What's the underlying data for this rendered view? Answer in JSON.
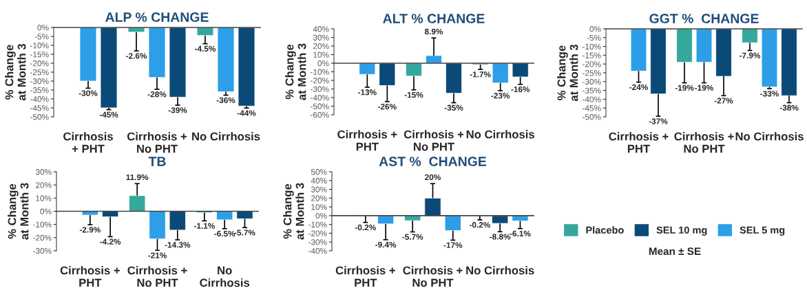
{
  "chart_data": [
    {
      "type": "bar",
      "title": "ALP % CHANGE",
      "ylabel": "% Change\nat Month 3",
      "categories": [
        "Cirrhosis\n+ PHT",
        "Cirrhosis +\nNo PHT",
        "No Cirrhosis"
      ],
      "ylim": [
        -50,
        0
      ],
      "yticks": [
        {
          "value": 0,
          "label": "0%"
        },
        {
          "value": -5,
          "label": "-5%"
        },
        {
          "value": -10,
          "label": "-10%"
        },
        {
          "value": -15,
          "label": "-15%"
        },
        {
          "value": -20,
          "label": "-20%"
        },
        {
          "value": -25,
          "label": "-25%"
        },
        {
          "value": -30,
          "label": "-30%"
        },
        {
          "value": -35,
          "label": "-35%"
        },
        {
          "value": -40,
          "label": "-40%"
        },
        {
          "value": -45,
          "label": "-45%"
        },
        {
          "value": -50,
          "label": "-50%"
        }
      ],
      "series": [
        {
          "color": "#35a89c",
          "values": [
            null,
            -2.6,
            -4.5
          ],
          "errors": [
            null,
            [
              -13.1,
              -2.6
            ],
            [
              -9.1,
              -4.5
            ]
          ],
          "value_labels": [
            null,
            "-2.6%",
            "-4.5%"
          ]
        },
        {
          "color": "#2d9ee8",
          "values": [
            -30,
            -28,
            -36
          ],
          "errors": [
            [
              -34,
              -30
            ],
            [
              -34.6,
              -28
            ],
            [
              -37.9,
              -36
            ]
          ],
          "value_labels": [
            "-30%",
            "-28%",
            "-36%"
          ]
        },
        {
          "color": "#0b4a78",
          "values": [
            -45,
            -39,
            -44
          ],
          "errors": [
            [
              -46,
              -45
            ],
            [
              -43.5,
              -39
            ],
            [
              -45.1,
              -44
            ]
          ],
          "value_labels": [
            "-45%",
            "-39%",
            "-44%"
          ]
        }
      ]
    },
    {
      "type": "bar",
      "title": "ALT % CHANGE",
      "ylabel": "% Change\nat Month 3",
      "categories": [
        "Cirrhosis +\nPHT",
        "Cirrhosis +\nNo PHT",
        "No Cirrhosis"
      ],
      "ylim": [
        -60,
        40
      ],
      "yticks": [
        {
          "value": 40,
          "label": "40%"
        },
        {
          "value": 30,
          "label": "30%"
        },
        {
          "value": 20,
          "label": "20%"
        },
        {
          "value": 10,
          "label": "10%"
        },
        {
          "value": 0,
          "label": "0%"
        },
        {
          "value": -10,
          "label": "-10%"
        },
        {
          "value": -20,
          "label": "-20%"
        },
        {
          "value": -30,
          "label": "-30%"
        },
        {
          "value": -40,
          "label": "-40%"
        },
        {
          "value": -50,
          "label": "-50%"
        },
        {
          "value": -60,
          "label": "-60%"
        }
      ],
      "series": [
        {
          "color": "#35a89c",
          "values": [
            null,
            -15,
            -1.7
          ],
          "errors": [
            null,
            [
              -31,
              -15
            ],
            [
              -7.2,
              -1.7
            ]
          ],
          "value_labels": [
            null,
            "-15%",
            "-1.7%"
          ]
        },
        {
          "color": "#2d9ee8",
          "values": [
            -13,
            8.9,
            -23
          ],
          "errors": [
            [
              -28,
              -13
            ],
            [
              8.9,
              29.4
            ],
            [
              -32,
              -23
            ]
          ],
          "value_labels": [
            "-13%",
            "8.9%",
            "-23%"
          ]
        },
        {
          "color": "#0b4a78",
          "values": [
            -26,
            -35,
            -16
          ],
          "errors": [
            [
              -44.7,
              -26
            ],
            [
              -46,
              -35
            ],
            [
              -24.6,
              -16
            ]
          ],
          "value_labels": [
            "-26%",
            "-35%",
            "-16%"
          ]
        }
      ]
    },
    {
      "type": "bar",
      "title": "GGT %  CHANGE",
      "ylabel": "% Change\nat Month 3",
      "categories": [
        "Cirrhosis +\nPHT",
        "Cirrhosis +\nNo PHT",
        "No Cirrhosis"
      ],
      "ylim": [
        -50,
        0
      ],
      "yticks": [
        {
          "value": 0,
          "label": "0%"
        },
        {
          "value": -5,
          "label": "-5%"
        },
        {
          "value": -10,
          "label": "-10%"
        },
        {
          "value": -15,
          "label": "-15%"
        },
        {
          "value": -20,
          "label": "-20%"
        },
        {
          "value": -25,
          "label": "-25%"
        },
        {
          "value": -30,
          "label": "-30%"
        },
        {
          "value": -35,
          "label": "-35%"
        },
        {
          "value": -40,
          "label": "-40%"
        },
        {
          "value": -45,
          "label": "-45%"
        },
        {
          "value": -50,
          "label": "-50%"
        }
      ],
      "series": [
        {
          "color": "#35a89c",
          "values": [
            null,
            -19,
            -7.9
          ],
          "errors": [
            null,
            [
              -30.7,
              -19
            ],
            [
              -12.3,
              -7.9
            ]
          ],
          "value_labels": [
            null,
            "-19%",
            "-7.9%"
          ]
        },
        {
          "color": "#2d9ee8",
          "values": [
            -24,
            -19,
            -33
          ],
          "errors": [
            [
              -30.3,
              -24
            ],
            [
              -30.7,
              -19
            ],
            [
              -34,
              -33
            ]
          ],
          "value_labels": [
            "-24%",
            "-19%",
            "-33%"
          ]
        },
        {
          "color": "#0b4a78",
          "values": [
            -37,
            -27,
            -38
          ],
          "errors": [
            [
              -49.7,
              -37
            ],
            [
              -38,
              -27
            ],
            [
              -42,
              -38
            ]
          ],
          "value_labels": [
            "-37%",
            "-27%",
            "-38%"
          ]
        }
      ]
    },
    {
      "type": "bar",
      "title": "TB",
      "ylabel": "% Change\nat Month 3",
      "categories": [
        "Cirrhosis +\nPHT",
        "Cirrhosis +\nNo PHT",
        "No\nCirrhosis"
      ],
      "ylim": [
        -30,
        30
      ],
      "yticks": [
        {
          "value": 30,
          "label": "30%"
        },
        {
          "value": 20,
          "label": "20%"
        },
        {
          "value": 10,
          "label": "10%"
        },
        {
          "value": 0,
          "label": "0%"
        },
        {
          "value": -10,
          "label": "-10%"
        },
        {
          "value": -20,
          "label": "-20%"
        },
        {
          "value": -30,
          "label": "-30%"
        }
      ],
      "series": [
        {
          "color": "#35a89c",
          "values": [
            null,
            11.9,
            -1.1
          ],
          "errors": [
            null,
            [
              11.9,
              21
            ],
            [
              -7.3,
              -1.1
            ]
          ],
          "value_labels": [
            null,
            "11.9%",
            "-1.1%"
          ]
        },
        {
          "color": "#2d9ee8",
          "values": [
            -2.9,
            -21,
            -6.5
          ],
          "errors": [
            [
              -10.2,
              -2.9
            ],
            [
              -29.7,
              -21
            ],
            [
              -13.2,
              -6.5
            ]
          ],
          "value_labels": [
            "-2.9%",
            "-21%",
            "-6.5%"
          ]
        },
        {
          "color": "#0b4a78",
          "values": [
            -4.2,
            -14.3,
            -5.7
          ],
          "errors": [
            [
              -19.3,
              -4.2
            ],
            [
              -21.7,
              -14.3
            ],
            [
              -12.4,
              -5.7
            ]
          ],
          "value_labels": [
            "-4.2%",
            "-14.3%",
            "-5.7%"
          ]
        }
      ]
    },
    {
      "type": "bar",
      "title": "AST %  CHANGE",
      "ylabel": "% Change\nat Month 3",
      "categories": [
        "Cirrhosis +\nPHT",
        "Cirrhosis +\nNo PHT",
        "No Cirrhosis"
      ],
      "ylim": [
        -40,
        50
      ],
      "yticks": [
        {
          "value": 50,
          "label": "50%"
        },
        {
          "value": 40,
          "label": "40%"
        },
        {
          "value": 30,
          "label": "30%"
        },
        {
          "value": 20,
          "label": "20%"
        },
        {
          "value": 10,
          "label": "10%"
        },
        {
          "value": 0,
          "label": "0%"
        },
        {
          "value": -10,
          "label": "-10%"
        },
        {
          "value": -20,
          "label": "-20%"
        },
        {
          "value": -30,
          "label": "-30%"
        },
        {
          "value": -40,
          "label": "-40%"
        }
      ],
      "legend": "right",
      "annotations": [
        "Mean ± SE"
      ],
      "series": [
        {
          "name": "Placebo",
          "color": "#35a89c",
          "values": [
            null,
            -5.7,
            -0.2
          ],
          "errors": [
            null,
            [
              -18.5,
              -5.7
            ],
            [
              -4.8,
              -0.2
            ]
          ],
          "value_labels": [
            null,
            "-5.7%",
            "-0.2%"
          ]
        },
        {
          "name": "SEL 10 mg",
          "color": "#0b4a78",
          "values": [
            -0.2,
            20,
            -8.8
          ],
          "errors": [
            [
              -7.7,
              -0.2
            ],
            [
              20,
              36.5
            ],
            [
              -18.3,
              -8.8
            ]
          ],
          "value_labels": [
            "-0.2%",
            "20%",
            "-8.8%"
          ]
        },
        {
          "name": "SEL 5 mg",
          "color": "#2d9ee8",
          "values": [
            -9.4,
            -17,
            -6.1
          ],
          "errors": [
            [
              -27.4,
              -9.4
            ],
            [
              -27.9,
              -17
            ],
            [
              -14.7,
              -6.1
            ]
          ],
          "value_labels": [
            "-9.4%",
            "-17%",
            "-6.1%"
          ]
        }
      ]
    }
  ]
}
